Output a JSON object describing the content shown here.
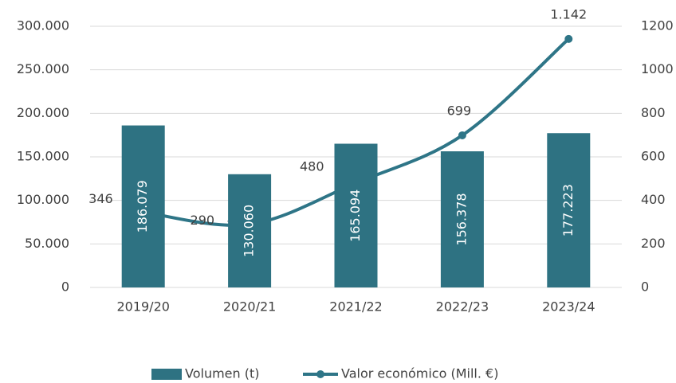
{
  "chart_data": {
    "type": "bar",
    "categories": [
      "2019/20",
      "2020/21",
      "2021/22",
      "2022/23",
      "2023/24"
    ],
    "series": [
      {
        "name": "Volumen (t)",
        "type": "bar",
        "color": "#2e7282",
        "values": [
          186079,
          130060,
          165094,
          156378,
          177223
        ],
        "value_labels": [
          "186.079",
          "130.060",
          "165.094",
          "156.378",
          "177.223"
        ]
      },
      {
        "name": "Valor económico (Mill. €)",
        "type": "line",
        "axis": "y2",
        "color": "#2e7587",
        "values": [
          346,
          290,
          480,
          699,
          1142
        ],
        "value_labels": [
          "346",
          "290",
          "480",
          "699",
          "1.142"
        ]
      }
    ],
    "ylim": [
      0,
      300000
    ],
    "yticks": [
      0,
      {
        "value": 50000,
        "label": "50.000"
      },
      {
        "value": 100000,
        "label": "100.000"
      },
      {
        "value": 150000,
        "label": "150.000"
      },
      {
        "value": 200000,
        "label": "200.000"
      },
      {
        "value": 250000,
        "label": "250.000"
      },
      {
        "value": 300000,
        "label": "300.000"
      }
    ],
    "y2lim": [
      0,
      1200
    ],
    "y2ticks": [
      0,
      200,
      400,
      600,
      800,
      1000,
      1200
    ],
    "grid": true,
    "legend": "bottom"
  }
}
